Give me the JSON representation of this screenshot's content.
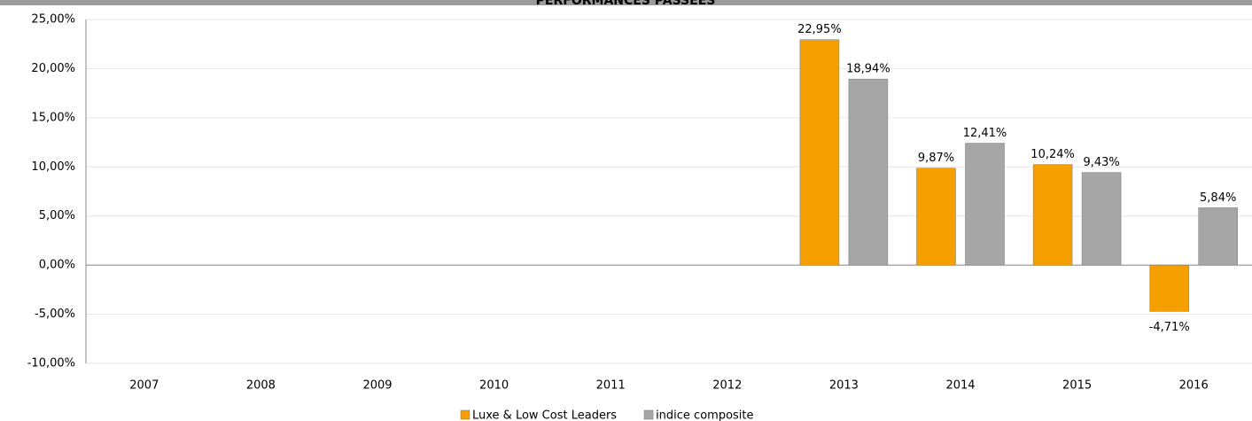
{
  "chart_data": {
    "type": "bar",
    "title": "PERFORMANCES PASSEES",
    "categories": [
      "2007",
      "2008",
      "2009",
      "2010",
      "2011",
      "2012",
      "2013",
      "2014",
      "2015",
      "2016"
    ],
    "series": [
      {
        "name": "Luxe & Low Cost Leaders",
        "color": "#f5a000",
        "values": [
          null,
          null,
          null,
          null,
          null,
          null,
          22.95,
          9.87,
          10.24,
          -4.71
        ],
        "value_labels": [
          null,
          null,
          null,
          null,
          null,
          null,
          "22,95%",
          "9,87%",
          "10,24%",
          "-4,71%"
        ]
      },
      {
        "name": "indice composite",
        "color": "#a6a6a6",
        "values": [
          null,
          null,
          null,
          null,
          null,
          null,
          18.94,
          12.41,
          9.43,
          5.84
        ],
        "value_labels": [
          null,
          null,
          null,
          null,
          null,
          null,
          "18,94%",
          "12,41%",
          "9,43%",
          "5,84%"
        ]
      }
    ],
    "ylim": [
      -10,
      25
    ],
    "yticks": [
      {
        "value": -10,
        "label": "-10,00%"
      },
      {
        "value": -5,
        "label": "-5,00%"
      },
      {
        "value": 0,
        "label": "0,00%"
      },
      {
        "value": 5,
        "label": "5,00%"
      },
      {
        "value": 10,
        "label": "10,00%"
      },
      {
        "value": 15,
        "label": "15,00%"
      },
      {
        "value": 20,
        "label": "20,00%"
      },
      {
        "value": 25,
        "label": "25,00%"
      }
    ],
    "grid": true
  }
}
